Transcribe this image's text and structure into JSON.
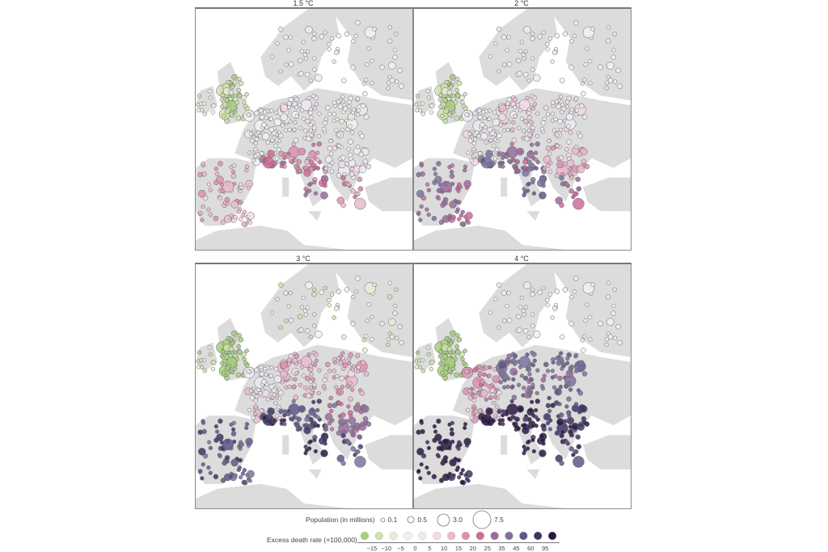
{
  "chart_data": [
    {
      "type": "scatter",
      "subtype": "proportional-symbol map",
      "title": "1.5 °C",
      "region": "Europe",
      "description": "City-level excess death rate; mostly near-zero (white) across central/northern Europe, green (negative) in UK/Ireland, pink to purple (positive) along Mediterranean (Spain, southern France, Italy, Greece).",
      "dominant_ranges": {
        "UK_Ireland": "-15 to -5",
        "Central_Northern": "-5 to 5",
        "Mediterranean": "10 to 45"
      }
    },
    {
      "type": "scatter",
      "subtype": "proportional-symbol map",
      "title": "2 °C",
      "region": "Europe",
      "description": "Similar to 1.5 °C with stronger pink/purple along Mediterranean; Italy and Spain reaching 45–60.",
      "dominant_ranges": {
        "UK_Ireland": "-15 to -5",
        "Central_Northern": "-5 to 10",
        "Mediterranean": "20 to 60"
      }
    },
    {
      "type": "scatter",
      "subtype": "proportional-symbol map",
      "title": "3 °C",
      "region": "Europe",
      "description": "UK remains green; central Europe white-to-pink; southern Europe (Iberia, Italy, Balkans, Greece) dark purple.",
      "dominant_ranges": {
        "UK_Ireland": "-15 to -5",
        "Central_Northern": "0 to 25",
        "Mediterranean": "45 to 95"
      }
    },
    {
      "type": "scatter",
      "subtype": "proportional-symbol map",
      "title": "4 °C",
      "region": "Europe",
      "description": "UK green; Benelux/France pink; most of continental and southern Europe dark purple.",
      "dominant_ranges": {
        "UK_Ireland": "-15 to -5",
        "Central_Northern": "15 to 60",
        "Mediterranean": "60 to 95"
      }
    }
  ],
  "panels": [
    {
      "title": "1.5 °C"
    },
    {
      "title": "2 °C"
    },
    {
      "title": "3 °C"
    },
    {
      "title": "4 °C"
    }
  ],
  "legend": {
    "population_label": "Population (in millions)",
    "population_sizes": [
      {
        "label": "0.1",
        "r": 2.5
      },
      {
        "label": "0.5",
        "r": 4
      },
      {
        "label": "3.0",
        "r": 7.5
      },
      {
        "label": "7.5",
        "r": 11
      }
    ],
    "rate_label": "Excess death rate (×100,000)",
    "rate_ticks": [
      "-15",
      "-10",
      "-5",
      "0",
      "5",
      "10",
      "15",
      "20",
      "25",
      "35",
      "45",
      "60",
      "95"
    ],
    "rate_colors": [
      "#a6cf7e",
      "#cfe2ad",
      "#e6ecd8",
      "#f1f1f3",
      "#ecebf2",
      "#f3d9e6",
      "#eab9cf",
      "#de8fb1",
      "#cf6b96",
      "#9a6c9c",
      "#7d729e",
      "#5e5889",
      "#3f3466",
      "#2b1743"
    ]
  },
  "colors": {
    "land": "#dcdcdc",
    "sea": "#ffffff",
    "frame": "#8a8a8a"
  }
}
